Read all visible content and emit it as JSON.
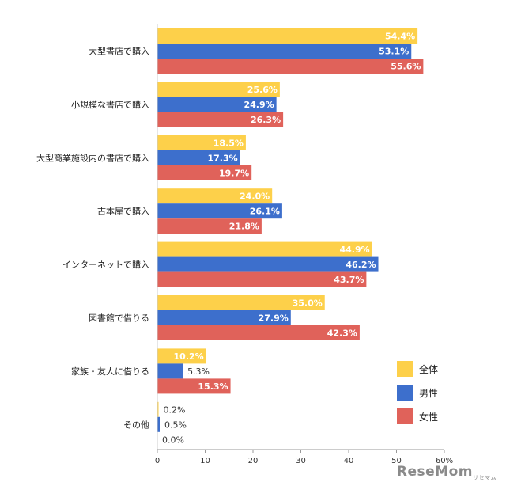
{
  "chart_data": {
    "type": "bar",
    "orientation": "horizontal",
    "categories": [
      "大型書店で購入",
      "小規模な書店で購入",
      "大型商業施設内の書店で購入",
      "古本屋で購入",
      "インターネットで購入",
      "図書館で借りる",
      "家族・友人に借りる",
      "その他"
    ],
    "series": [
      {
        "name": "全体",
        "color": "#FDD04A",
        "values": [
          54.4,
          25.6,
          18.5,
          24.0,
          44.9,
          35.0,
          10.2,
          0.2
        ],
        "labels": [
          "54.4%",
          "25.6%",
          "18.5%",
          "24.0%",
          "44.9%",
          "35.0%",
          "10.2%",
          "0.2%"
        ]
      },
      {
        "name": "男性",
        "color": "#3D6FCC",
        "values": [
          53.1,
          24.9,
          17.3,
          26.1,
          46.2,
          27.9,
          5.3,
          0.5
        ],
        "labels": [
          "53.1%",
          "24.9%",
          "17.3%",
          "26.1%",
          "46.2%",
          "27.9%",
          "5.3%",
          "0.5%"
        ]
      },
      {
        "name": "女性",
        "color": "#E0625A",
        "values": [
          55.6,
          26.3,
          19.7,
          21.8,
          43.7,
          42.3,
          15.3,
          0.0
        ],
        "labels": [
          "55.6%",
          "26.3%",
          "19.7%",
          "21.8%",
          "43.7%",
          "42.3%",
          "15.3%",
          "0.0%"
        ]
      }
    ],
    "xlim": [
      0,
      60
    ],
    "xticks": [
      "0",
      "10",
      "20",
      "30",
      "40",
      "50",
      "60%"
    ],
    "grid": false,
    "legend": "right"
  },
  "watermark": {
    "text": "ReseMom",
    "sub": "リセマム"
  }
}
